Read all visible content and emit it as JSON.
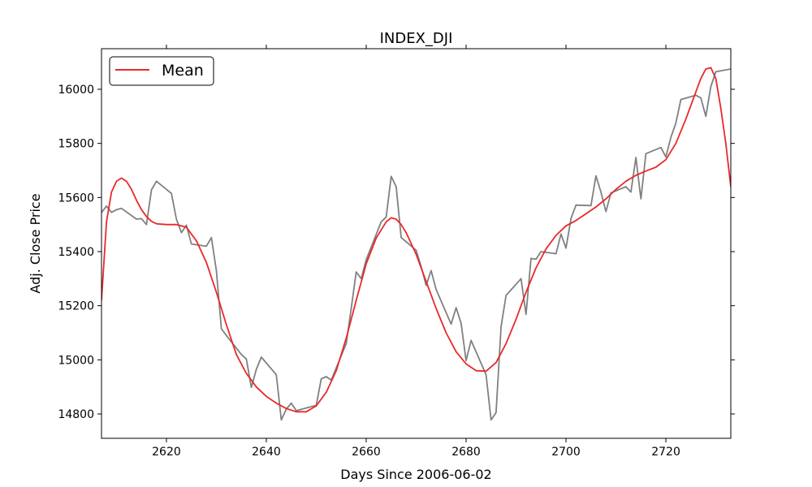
{
  "chart_data": {
    "type": "line",
    "title": "INDEX_DJI",
    "xlabel": "Days Since 2006-06-02",
    "ylabel": "Adj. Close Price",
    "xlim": [
      2607,
      2733
    ],
    "ylim": [
      14710,
      16150
    ],
    "x_ticks": [
      2620,
      2640,
      2660,
      2680,
      2700,
      2720
    ],
    "y_ticks": [
      14800,
      15000,
      15200,
      15400,
      15600,
      15800,
      16000
    ],
    "grid": false,
    "legend_position": "top-left",
    "colors": {
      "raw": "#808080",
      "mean": "#e8292b"
    },
    "series": [
      {
        "color": "#808080",
        "x": [
          2607,
          2608,
          2609,
          2610,
          2611,
          2614,
          2615,
          2616,
          2617,
          2618,
          2621,
          2622,
          2623,
          2624,
          2625,
          2628,
          2629,
          2630,
          2631,
          2632,
          2635,
          2636,
          2637,
          2638,
          2639,
          2642,
          2643,
          2644,
          2645,
          2646,
          2650,
          2651,
          2652,
          2653,
          2656,
          2657,
          2658,
          2659,
          2660,
          2663,
          2664,
          2665,
          2666,
          2667,
          2670,
          2671,
          2672,
          2673,
          2674,
          2677,
          2678,
          2679,
          2680,
          2681,
          2684,
          2685,
          2686,
          2687,
          2688,
          2691,
          2692,
          2693,
          2694,
          2695,
          2698,
          2699,
          2700,
          2701,
          2702,
          2705,
          2706,
          2707,
          2708,
          2709,
          2712,
          2713,
          2714,
          2715,
          2716,
          2719,
          2720,
          2721,
          2722,
          2723,
          2726,
          2727,
          2728,
          2729,
          2730,
          2733
        ],
        "y": [
          15545,
          15568,
          15545,
          15555,
          15560,
          15520,
          15522,
          15500,
          15628,
          15660,
          15615,
          15520,
          15470,
          15498,
          15428,
          15420,
          15452,
          15330,
          15115,
          15090,
          15020,
          15003,
          14898,
          14965,
          15010,
          14945,
          14778,
          14818,
          14840,
          14812,
          14832,
          14930,
          14938,
          14925,
          15060,
          15190,
          15325,
          15300,
          15370,
          15510,
          15528,
          15678,
          15640,
          15452,
          15405,
          15345,
          15275,
          15330,
          15260,
          15132,
          15193,
          15135,
          14997,
          15072,
          14945,
          14778,
          14805,
          15122,
          15238,
          15300,
          15168,
          15375,
          15372,
          15400,
          15392,
          15465,
          15413,
          15522,
          15572,
          15570,
          15680,
          15620,
          15548,
          15617,
          15640,
          15620,
          15748,
          15595,
          15762,
          15785,
          15750,
          15822,
          15875,
          15962,
          15978,
          15968,
          15900,
          16010,
          16065,
          16075
        ]
      },
      {
        "name": "Mean",
        "color": "#e8292b",
        "x": [
          2607,
          2608,
          2609,
          2610,
          2611,
          2612,
          2613,
          2614,
          2615,
          2616,
          2617,
          2618,
          2620,
          2622,
          2624,
          2626,
          2628,
          2630,
          2632,
          2634,
          2636,
          2638,
          2640,
          2642,
          2644,
          2646,
          2648,
          2650,
          2652,
          2654,
          2656,
          2658,
          2660,
          2662,
          2664,
          2665,
          2666,
          2667,
          2668,
          2670,
          2672,
          2674,
          2676,
          2678,
          2680,
          2682,
          2684,
          2686,
          2688,
          2690,
          2692,
          2694,
          2696,
          2698,
          2700,
          2702,
          2704,
          2706,
          2708,
          2710,
          2712,
          2714,
          2716,
          2718,
          2720,
          2722,
          2724,
          2726,
          2727,
          2728,
          2729,
          2730,
          2731,
          2732,
          2733
        ],
        "y": [
          15220,
          15510,
          15620,
          15660,
          15672,
          15660,
          15630,
          15590,
          15555,
          15530,
          15512,
          15503,
          15500,
          15500,
          15490,
          15440,
          15360,
          15250,
          15130,
          15020,
          14950,
          14900,
          14865,
          14840,
          14820,
          14808,
          14808,
          14830,
          14880,
          14960,
          15080,
          15220,
          15355,
          15450,
          15510,
          15525,
          15520,
          15500,
          15470,
          15390,
          15290,
          15190,
          15100,
          15030,
          14985,
          14960,
          14958,
          14990,
          15060,
          15150,
          15250,
          15340,
          15410,
          15460,
          15495,
          15515,
          15540,
          15565,
          15595,
          15630,
          15660,
          15682,
          15698,
          15712,
          15740,
          15800,
          15890,
          15990,
          16040,
          16075,
          16080,
          16040,
          15930,
          15800,
          15640
        ]
      }
    ],
    "legend": [
      {
        "label": "Mean",
        "color": "#e8292b"
      }
    ]
  }
}
